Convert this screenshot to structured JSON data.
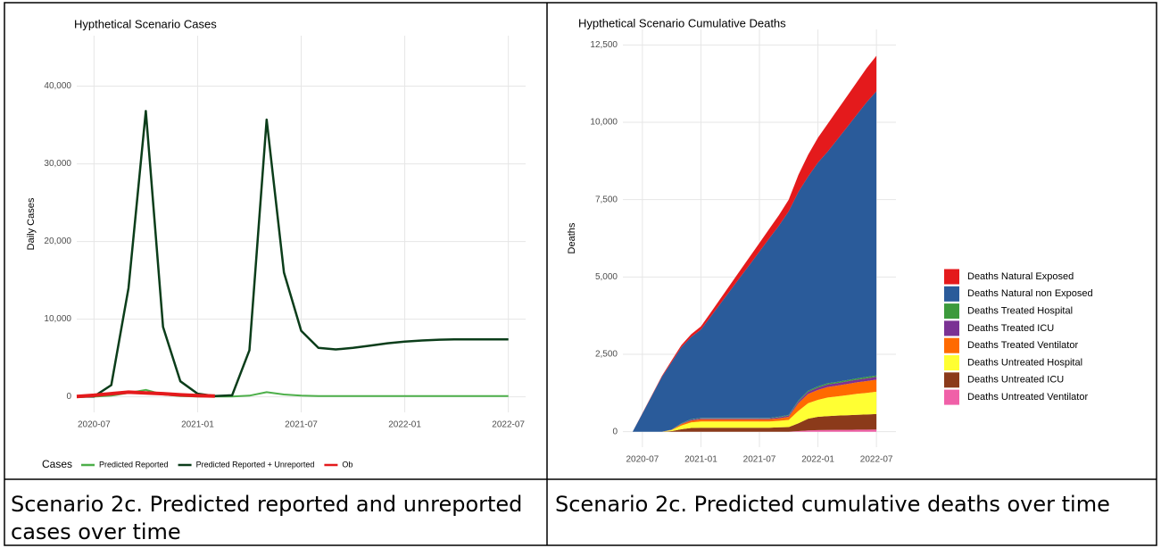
{
  "chart_data": [
    {
      "type": "line",
      "title": "Hypthetical Scenario Cases",
      "y_label": "Daily Cases",
      "x": [
        "2020-06",
        "2020-07",
        "2020-08",
        "2020-09",
        "2020-10",
        "2020-11",
        "2020-12",
        "2021-01",
        "2021-02",
        "2021-03",
        "2021-04",
        "2021-05",
        "2021-06",
        "2021-07",
        "2021-08",
        "2021-09",
        "2021-10",
        "2021-11",
        "2021-12",
        "2022-01",
        "2022-02",
        "2022-03",
        "2022-04",
        "2022-05",
        "2022-06",
        "2022-07"
      ],
      "series": [
        {
          "name": "Predicted Reported",
          "color": "#4daf4a",
          "values": [
            0,
            20,
            150,
            500,
            900,
            300,
            100,
            50,
            30,
            30,
            150,
            600,
            300,
            150,
            100,
            100,
            100,
            100,
            100,
            100,
            100,
            100,
            100,
            100,
            100,
            100
          ]
        },
        {
          "name": "Predicted Reported + Unreported",
          "color": "#0b3d1a",
          "values": [
            0,
            50,
            1500,
            14000,
            36800,
            9000,
            2000,
            400,
            100,
            200,
            6000,
            35700,
            16000,
            8500,
            6300,
            6100,
            6300,
            6600,
            6900,
            7100,
            7250,
            7350,
            7400,
            7400,
            7400,
            7400
          ]
        },
        {
          "name": "Ob",
          "color": "#e41a1c",
          "values": [
            50,
            200,
            400,
            600,
            500,
            400,
            250,
            150,
            100,
            null,
            null,
            null,
            null,
            null,
            null,
            null,
            null,
            null,
            null,
            null,
            null,
            null,
            null,
            null,
            null,
            null
          ]
        }
      ],
      "xlim": [
        "2020-06",
        "2022-08"
      ],
      "xticks": [
        "2020-07",
        "2021-01",
        "2021-07",
        "2022-01",
        "2022-07"
      ],
      "ylim": [
        -2000,
        46500
      ],
      "yticks": [
        0,
        {
          "value": 10000,
          "label": "10,000"
        },
        {
          "value": 20000,
          "label": "20,000"
        },
        {
          "value": 30000,
          "label": "30,000"
        },
        {
          "value": 40000,
          "label": "40,000"
        }
      ],
      "grid": true,
      "legend_title": "Cases",
      "legend": "bottom"
    },
    {
      "type": "stacked_area",
      "title": "Hypthetical Scenario Cumulative Deaths",
      "y_label": "Deaths",
      "x": [
        "2020-06",
        "2020-07",
        "2020-08",
        "2020-09",
        "2020-10",
        "2020-11",
        "2020-12",
        "2021-01",
        "2021-02",
        "2021-03",
        "2021-04",
        "2021-05",
        "2021-06",
        "2021-07",
        "2021-08",
        "2021-09",
        "2021-10",
        "2021-11",
        "2021-12",
        "2022-01",
        "2022-02",
        "2022-03",
        "2022-04",
        "2022-05",
        "2022-06",
        "2022-07"
      ],
      "series": [
        {
          "name": "Deaths Natural Exposed",
          "color": "#e41a1c",
          "values": [
            0,
            10,
            20,
            30,
            50,
            70,
            90,
            100,
            130,
            160,
            190,
            220,
            250,
            280,
            310,
            340,
            380,
            550,
            700,
            800,
            900,
            950,
            1000,
            1050,
            1100,
            1150
          ]
        },
        {
          "name": "Deaths Natural non Exposed",
          "color": "#2a5b9a",
          "values": [
            0,
            590,
            1180,
            1770,
            2180,
            2460,
            2655,
            2855,
            3275,
            3695,
            4115,
            4535,
            4955,
            5375,
            5795,
            6177,
            6580,
            6740,
            6925,
            7237,
            7485,
            7840,
            8183,
            8528,
            8881,
            9185
          ]
        },
        {
          "name": "Deaths Treated Hospital",
          "color": "#3c9a3c",
          "values": [
            0,
            0,
            0,
            0,
            5,
            10,
            15,
            15,
            15,
            15,
            15,
            15,
            15,
            15,
            15,
            18,
            20,
            30,
            35,
            38,
            40,
            40,
            42,
            42,
            44,
            45
          ]
        },
        {
          "name": "Deaths Treated ICU",
          "color": "#7b3294",
          "values": [
            0,
            0,
            0,
            0,
            5,
            20,
            30,
            30,
            30,
            30,
            30,
            30,
            30,
            30,
            30,
            35,
            40,
            60,
            70,
            75,
            80,
            80,
            85,
            85,
            90,
            90
          ]
        },
        {
          "name": "Deaths Treated Ventilator",
          "color": "#ff6a00",
          "values": [
            0,
            0,
            0,
            0,
            10,
            40,
            60,
            70,
            70,
            70,
            70,
            70,
            70,
            70,
            70,
            80,
            100,
            250,
            300,
            320,
            340,
            350,
            360,
            370,
            380,
            390
          ]
        },
        {
          "name": "Deaths Untreated Hospital",
          "color": "#ffff33",
          "values": [
            0,
            0,
            0,
            0,
            30,
            120,
            180,
            200,
            200,
            200,
            200,
            200,
            200,
            200,
            200,
            210,
            230,
            400,
            500,
            550,
            600,
            620,
            650,
            680,
            700,
            720
          ]
        },
        {
          "name": "Deaths Untreated ICU",
          "color": "#8b3a1a",
          "values": [
            0,
            0,
            0,
            0,
            20,
            80,
            120,
            130,
            130,
            130,
            130,
            130,
            130,
            130,
            130,
            140,
            150,
            250,
            380,
            430,
            450,
            460,
            470,
            480,
            490,
            500
          ]
        },
        {
          "name": "Deaths Untreated Ventilator",
          "color": "#f060a8",
          "values": [
            0,
            0,
            0,
            0,
            0,
            0,
            0,
            0,
            0,
            0,
            0,
            0,
            0,
            0,
            0,
            0,
            0,
            20,
            40,
            50,
            55,
            60,
            60,
            65,
            65,
            70
          ]
        }
      ],
      "xlim": [
        "2020-05",
        "2022-09"
      ],
      "xticks": [
        "2020-07",
        "2021-01",
        "2021-07",
        "2022-01",
        "2022-07"
      ],
      "ylim": [
        -500,
        13000
      ],
      "yticks": [
        0,
        {
          "value": 2500,
          "label": "2,500"
        },
        {
          "value": 5000,
          "label": "5,000"
        },
        {
          "value": 7500,
          "label": "7,500"
        },
        {
          "value": 10000,
          "label": "10,000"
        },
        {
          "value": 12500,
          "label": "12,500"
        }
      ],
      "grid": true,
      "legend": "right"
    }
  ],
  "captions": [
    "Scenario 2c. Predicted reported and unreported cases over time",
    "Scenario 2c. Predicted cumulative deaths over time"
  ]
}
